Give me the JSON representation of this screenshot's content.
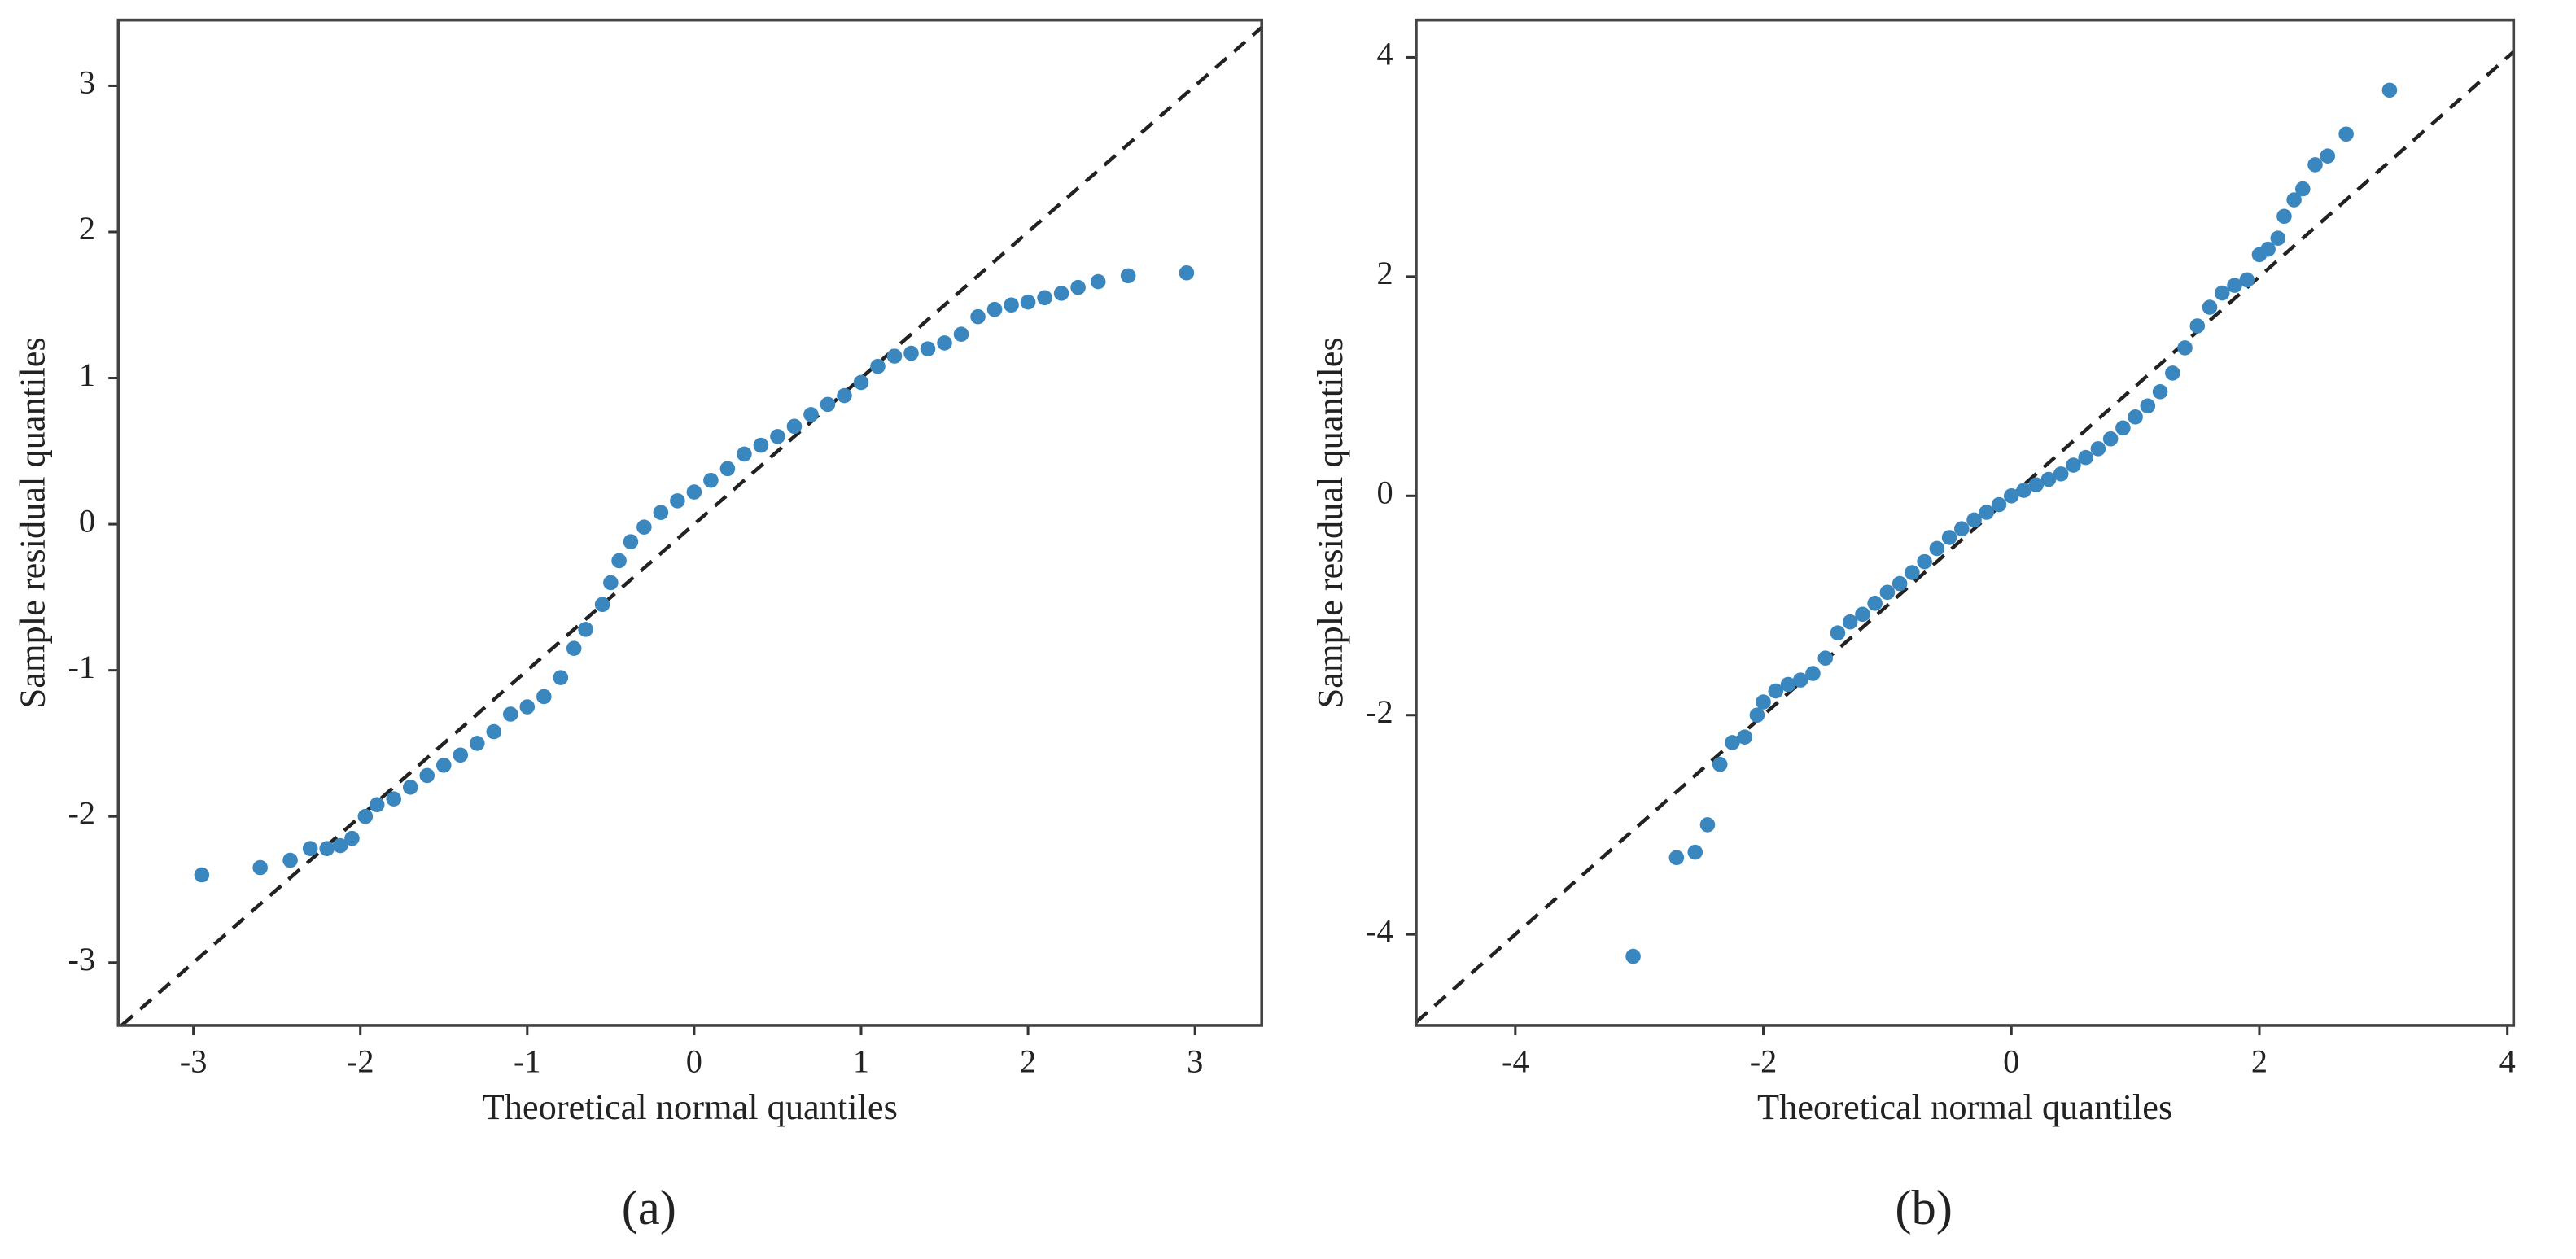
{
  "chart_data": [
    {
      "type": "scatter",
      "label": "(a)",
      "xlabel": "Theoretical normal quantiles",
      "ylabel": "Sample residual quantiles",
      "xlim": [
        -3.45,
        3.4
      ],
      "ylim": [
        -3.43,
        3.45
      ],
      "xticks": [
        -3,
        -2,
        -1,
        0,
        1,
        2,
        3
      ],
      "yticks": [
        -3,
        -2,
        -1,
        0,
        1,
        2,
        3
      ],
      "color": "#3a87c0",
      "x": [
        -2.95,
        -2.6,
        -2.42,
        -2.3,
        -2.2,
        -2.12,
        -2.05,
        -1.97,
        -1.9,
        -1.8,
        -1.7,
        -1.6,
        -1.5,
        -1.4,
        -1.3,
        -1.2,
        -1.1,
        -1.0,
        -0.9,
        -0.8,
        -0.72,
        -0.65,
        -0.55,
        -0.5,
        -0.45,
        -0.38,
        -0.3,
        -0.2,
        -0.1,
        0,
        0.1,
        0.2,
        0.3,
        0.4,
        0.5,
        0.6,
        0.7,
        0.8,
        0.9,
        1.0,
        1.1,
        1.2,
        1.3,
        1.4,
        1.5,
        1.6,
        1.7,
        1.8,
        1.9,
        2.0,
        2.1,
        2.2,
        2.3,
        2.42,
        2.6,
        2.95
      ],
      "y": [
        -2.4,
        -2.35,
        -2.3,
        -2.22,
        -2.22,
        -2.2,
        -2.15,
        -2.0,
        -1.92,
        -1.88,
        -1.8,
        -1.72,
        -1.65,
        -1.58,
        -1.5,
        -1.42,
        -1.3,
        -1.25,
        -1.18,
        -1.05,
        -0.85,
        -0.72,
        -0.55,
        -0.4,
        -0.25,
        -0.12,
        -0.02,
        0.08,
        0.16,
        0.22,
        0.3,
        0.38,
        0.48,
        0.54,
        0.6,
        0.67,
        0.75,
        0.82,
        0.88,
        0.97,
        1.08,
        1.15,
        1.17,
        1.2,
        1.24,
        1.3,
        1.42,
        1.47,
        1.5,
        1.52,
        1.55,
        1.58,
        1.62,
        1.66,
        1.7,
        1.72
      ]
    },
    {
      "type": "scatter",
      "label": "(b)",
      "xlabel": "Theoretical normal quantiles",
      "ylabel": "Sample residual quantiles",
      "xlim": [
        -4.8,
        4.05
      ],
      "ylim": [
        -4.83,
        4.34
      ],
      "xticks": [
        -4,
        -2,
        0,
        2,
        4
      ],
      "yticks": [
        -4,
        -2,
        0,
        2,
        4
      ],
      "color": "#3a87c0",
      "x": [
        -3.05,
        -2.7,
        -2.55,
        -2.45,
        -2.35,
        -2.25,
        -2.15,
        -2.05,
        -2.0,
        -1.9,
        -1.8,
        -1.7,
        -1.6,
        -1.5,
        -1.4,
        -1.3,
        -1.2,
        -1.1,
        -1.0,
        -0.9,
        -0.8,
        -0.7,
        -0.6,
        -0.5,
        -0.4,
        -0.3,
        -0.2,
        -0.1,
        0,
        0.1,
        0.2,
        0.3,
        0.4,
        0.5,
        0.6,
        0.7,
        0.8,
        0.9,
        1.0,
        1.1,
        1.2,
        1.3,
        1.4,
        1.5,
        1.6,
        1.7,
        1.8,
        1.9,
        2.0,
        2.07,
        2.15,
        2.2,
        2.28,
        2.35,
        2.45,
        2.55,
        2.7,
        3.05
      ],
      "y": [
        -4.2,
        -3.3,
        -3.25,
        -3.0,
        -2.45,
        -2.25,
        -2.2,
        -2.0,
        -1.88,
        -1.78,
        -1.72,
        -1.68,
        -1.62,
        -1.48,
        -1.25,
        -1.15,
        -1.08,
        -0.98,
        -0.88,
        -0.8,
        -0.7,
        -0.6,
        -0.48,
        -0.38,
        -0.3,
        -0.22,
        -0.15,
        -0.08,
        0,
        0.05,
        0.1,
        0.15,
        0.2,
        0.28,
        0.35,
        0.43,
        0.52,
        0.62,
        0.72,
        0.82,
        0.95,
        1.12,
        1.35,
        1.55,
        1.72,
        1.85,
        1.92,
        1.97,
        2.2,
        2.25,
        2.35,
        2.55,
        2.7,
        2.8,
        3.02,
        3.1,
        3.3,
        3.7
      ]
    }
  ]
}
